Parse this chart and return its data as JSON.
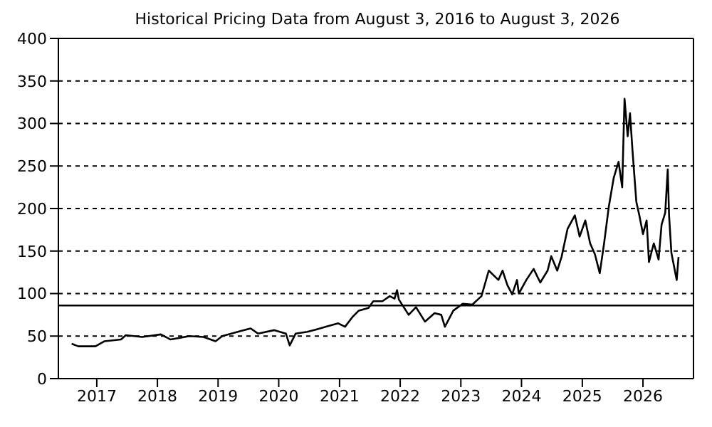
{
  "chart_data": {
    "type": "line",
    "title": "Historical Pricing Data from August 3, 2016 to August 3, 2026",
    "x": [
      "2016-08-03",
      "2016-09-12",
      "2016-12-24",
      "2017-02-17",
      "2017-05-27",
      "2017-06-25",
      "2017-10-01",
      "2018-01-22",
      "2018-03-21",
      "2018-07-13",
      "2018-10-05",
      "2018-12-17",
      "2019-01-26",
      "2019-05-19",
      "2019-07-16",
      "2019-08-29",
      "2019-12-06",
      "2020-02-13",
      "2020-03-07",
      "2020-04-12",
      "2020-06-21",
      "2020-08-18",
      "2020-10-12",
      "2020-12-24",
      "2021-02-03",
      "2021-03-18",
      "2021-04-27",
      "2021-06-24",
      "2021-07-23",
      "2021-09-16",
      "2021-10-30",
      "2021-11-28",
      "2021-12-13",
      "2021-12-24",
      "2022-02-21",
      "2022-04-06",
      "2022-05-30",
      "2022-07-27",
      "2022-09-05",
      "2022-09-27",
      "2022-11-17",
      "2023-01-12",
      "2023-03-11",
      "2023-05-05",
      "2023-06-18",
      "2023-08-15",
      "2023-09-09",
      "2023-10-08",
      "2023-11-06",
      "2023-12-05",
      "2023-12-16",
      "2024-01-30",
      "2024-03-14",
      "2024-04-23",
      "2024-06-06",
      "2024-06-28",
      "2024-08-03",
      "2024-08-29",
      "2024-10-04",
      "2024-11-17",
      "2024-12-16",
      "2025-01-19",
      "2025-02-17",
      "2025-03-18",
      "2025-04-16",
      "2025-05-12",
      "2025-06-10",
      "2025-07-09",
      "2025-08-07",
      "2025-08-29",
      "2025-09-12",
      "2025-10-01",
      "2025-10-15",
      "2025-10-30",
      "2025-11-22",
      "2025-12-10",
      "2026-01-01",
      "2026-01-23",
      "2026-02-06",
      "2026-03-07",
      "2026-04-05",
      "2026-04-23",
      "2026-05-15",
      "2026-05-30",
      "2026-06-07",
      "2026-06-21",
      "2026-07-23",
      "2026-08-03"
    ],
    "series": [
      {
        "color": "#000000",
        "values": [
          41,
          38,
          38,
          44,
          46,
          51,
          49,
          52,
          46,
          50,
          49,
          44,
          50,
          56,
          59,
          53,
          57,
          53,
          39,
          53,
          55,
          58,
          61,
          65,
          61,
          72,
          80,
          83,
          91,
          91,
          97,
          94,
          104,
          93,
          75,
          84,
          67,
          77,
          75,
          61,
          80,
          88,
          87,
          97,
          127,
          116,
          127,
          110,
          99,
          116,
          100,
          116,
          129,
          113,
          127,
          144,
          127,
          143,
          176,
          192,
          167,
          186,
          159,
          146,
          124,
          159,
          203,
          236,
          255,
          225,
          329,
          285,
          312,
          268,
          208,
          192,
          170,
          186,
          137,
          159,
          140,
          181,
          195,
          246,
          192,
          148,
          116,
          143
        ]
      }
    ],
    "xlim": [
      "2016-05-15",
      "2026-11-01"
    ],
    "xticks": [
      {
        "value": "2017-01-01",
        "label": "2017"
      },
      {
        "value": "2018-01-01",
        "label": "2018"
      },
      {
        "value": "2019-01-01",
        "label": "2019"
      },
      {
        "value": "2020-01-01",
        "label": "2020"
      },
      {
        "value": "2021-01-01",
        "label": "2021"
      },
      {
        "value": "2022-01-01",
        "label": "2022"
      },
      {
        "value": "2023-01-01",
        "label": "2023"
      },
      {
        "value": "2024-01-01",
        "label": "2024"
      },
      {
        "value": "2025-01-01",
        "label": "2025"
      },
      {
        "value": "2026-01-01",
        "label": "2026"
      }
    ],
    "ylim": [
      0,
      400
    ],
    "yticks": [
      0,
      50,
      100,
      150,
      200,
      250,
      300,
      350,
      400
    ],
    "grid": "y",
    "legend": false,
    "marker": "none",
    "line_style": "solid",
    "ref_lines": [
      {
        "axis": "y",
        "value": 86,
        "color": "#000000",
        "line_style": "solid"
      }
    ]
  }
}
